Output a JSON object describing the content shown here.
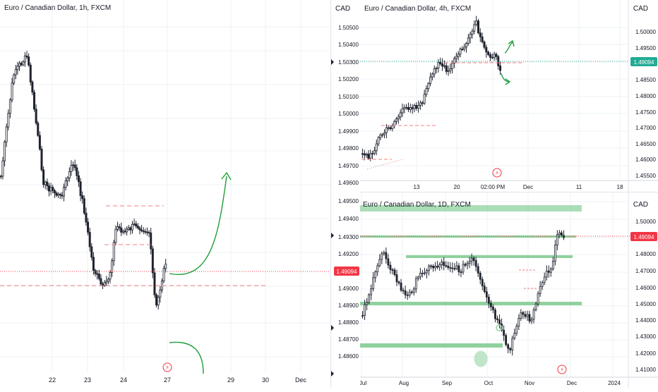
{
  "colors": {
    "grid": "#eef0f3",
    "axis_text": "#131722",
    "candle": "#1e222d",
    "price_line_red": "#f23645",
    "price_line_green": "#22ab94",
    "zone_green": "#8fd19e",
    "arrow_green": "#1f9d3a",
    "dash_red": "#f77c80",
    "panel_border": "#d1d4dc"
  },
  "panels": {
    "left": {
      "title": "Euro / Canadian Dollar, 1h, FXCM",
      "price_label": "1.49094",
      "event_icon": "lightning-icon",
      "x_ticks": [
        "22",
        "23",
        "24",
        "27",
        "29",
        "30",
        "Dec"
      ],
      "y_ticks": [
        "1.49500",
        "1.49400",
        "1.49300",
        "1.49200",
        "1.49100",
        "1.49000",
        "1.48900",
        "1.48800",
        "1.48700",
        "1.48600"
      ],
      "currency": "CAD"
    },
    "top_right": {
      "title": "Euro / Canadian Dollar, 4h, FXCM",
      "currency": "CAD",
      "price_label": "1.49094",
      "event_icon": "lightning-icon",
      "x_ticks": [
        "13",
        "20",
        "02:00 PM",
        "Dec",
        "11",
        "18"
      ],
      "y_ticks": [
        "1.50000",
        "1.49500",
        "1.49000",
        "1.48500",
        "1.48000",
        "1.47500",
        "1.47000",
        "1.46500",
        "1.46000",
        "1.45500"
      ],
      "left_y_ticks": [
        "1.50500",
        "1.50400",
        "1.50300",
        "1.50200",
        "1.50100",
        "1.50000",
        "1.49900",
        "1.49800",
        "1.49700",
        "1.49600"
      ]
    },
    "bottom_right": {
      "title": "Euro / Canadian Dollar, 1D, FXCM",
      "currency": "CAD",
      "price_label": "1.49094",
      "event_icon": "lightning-icon",
      "x_ticks": [
        "Jul",
        "Aug",
        "Sep",
        "Oct",
        "Nov",
        "Dec",
        "2024"
      ],
      "y_ticks": [
        "1.50000",
        "1.49000",
        "1.48000",
        "1.47000",
        "1.46000",
        "1.45000",
        "1.44000",
        "1.43000",
        "1.42000",
        "1.41000"
      ],
      "left_y_ticks": [
        "1.49500",
        "1.49400",
        "1.49300",
        "1.49200",
        "1.49100",
        "1.49000",
        "1.48900",
        "1.48800",
        "1.48700",
        "1.48600"
      ]
    }
  },
  "chart_data": [
    {
      "type": "candlestick",
      "title": "Euro / Canadian Dollar, 1h, FXCM",
      "x": [
        "22",
        "23",
        "24",
        "27",
        "29",
        "30",
        "Dec"
      ],
      "ylim": [
        1.4855,
        1.4955
      ],
      "last_price": 1.49094,
      "annotations": [
        "horizontal dashed levels near 1.4910 and 1.4935",
        "projected arrow up",
        "projected arrow down"
      ]
    },
    {
      "type": "candlestick",
      "title": "Euro / Canadian Dollar, 4h, FXCM",
      "x": [
        "13",
        "20",
        "02:00 PM",
        "Dec",
        "11",
        "18"
      ],
      "ylim": [
        1.4555,
        1.506
      ],
      "last_price": 1.49094
    },
    {
      "type": "candlestick",
      "title": "Euro / Canadian Dollar, 1D, FXCM",
      "x": [
        "Jul",
        "Aug",
        "Sep",
        "Oct",
        "Nov",
        "Dec",
        "2024"
      ],
      "ylim": [
        1.405,
        1.505
      ],
      "last_price": 1.49094,
      "zones": [
        1.4955,
        1.493,
        1.4918,
        1.489,
        1.4865
      ]
    }
  ]
}
